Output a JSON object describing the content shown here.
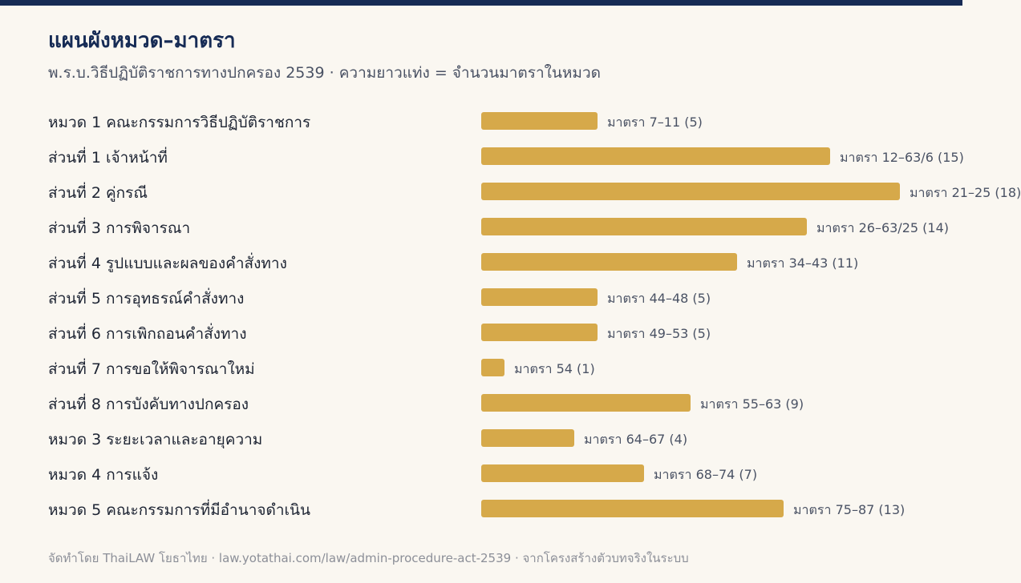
{
  "header": {
    "title": "แผนผังหมวด–มาตรา",
    "subtitle": "พ.ร.บ.วิธีปฏิบัติราชการทางปกครอง 2539 · ความยาวแท่ง = จำนวนมาตราในหมวด"
  },
  "colors": {
    "bar": "#d6a94a",
    "accent": "#162b55",
    "background": "#faf7f1"
  },
  "chart_data": {
    "type": "bar",
    "orientation": "horizontal",
    "categories": [
      "หมวด 1 คณะกรรมการวิธีปฏิบัติราชการ",
      "ส่วนที่ 1 เจ้าหน้าที่",
      "ส่วนที่ 2 คู่กรณี",
      "ส่วนที่ 3 การพิจารณา",
      "ส่วนที่ 4 รูปแบบและผลของคำสั่งทาง",
      "ส่วนที่ 5 การอุทธรณ์คำสั่งทาง",
      "ส่วนที่ 6 การเพิกถอนคำสั่งทาง",
      "ส่วนที่ 7 การขอให้พิจารณาใหม่",
      "ส่วนที่ 8 การบังคับทางปกครอง",
      "หมวด 3 ระยะเวลาและอายุความ",
      "หมวด 4 การแจ้ง",
      "หมวด 5 คณะกรรมการที่มีอำนาจดำเนิน"
    ],
    "values": [
      5,
      15,
      18,
      14,
      11,
      5,
      5,
      1,
      9,
      4,
      7,
      13
    ],
    "value_labels": [
      "มาตรา 7–11 (5)",
      "มาตรา 12–63/6 (15)",
      "มาตรา 21–25 (18)",
      "มาตรา 26–63/25 (14)",
      "มาตรา 34–43 (11)",
      "มาตรา 44–48 (5)",
      "มาตรา 49–53 (5)",
      "มาตรา 54 (1)",
      "มาตรา 55–63 (9)",
      "มาตรา 64–67 (4)",
      "มาตรา 68–74 (7)",
      "มาตรา 75–87 (13)"
    ],
    "grid": false,
    "legend": "none"
  },
  "footer": {
    "text": "จัดทำโดย ThaiLAW โยธาไทย · law.yotathai.com/law/admin-procedure-act-2539 · จากโครงสร้างตัวบทจริงในระบบ"
  }
}
